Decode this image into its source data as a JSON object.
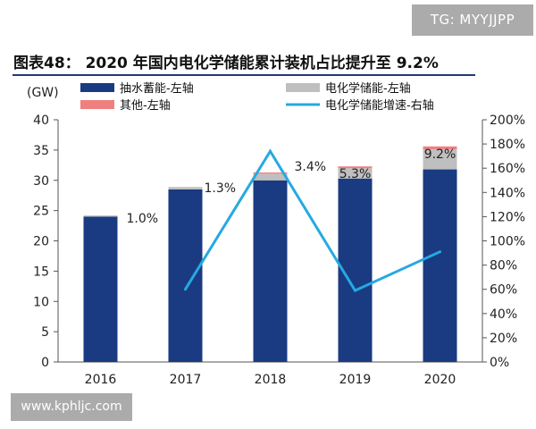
{
  "watermarks": {
    "top": "TG: MYYJJPP",
    "bottom": "www.kphljc.com"
  },
  "chart_data": {
    "type": "bar",
    "title": "图表48：  2020 年国内电化学储能累计装机占比提升至 9.2%",
    "ylabel_left": "(GW)",
    "ylim_left": [
      0,
      40
    ],
    "yticks_left": [
      "0",
      "5",
      "10",
      "15",
      "20",
      "25",
      "30",
      "35",
      "40"
    ],
    "ylim_right": [
      0,
      200
    ],
    "yticks_right": [
      "0%",
      "20%",
      "40%",
      "60%",
      "80%",
      "100%",
      "120%",
      "140%",
      "160%",
      "180%",
      "200%"
    ],
    "categories": [
      "2016",
      "2017",
      "2018",
      "2019",
      "2020"
    ],
    "stacked": true,
    "legend_position": "top",
    "colors": {
      "pumped": "#1a3b82",
      "electrochem": "#bfbfbf",
      "other": "#f07f7f",
      "growth": "#26a9e1"
    },
    "series": [
      {
        "name": "抽水蓄能-左轴",
        "type": "bar",
        "axis": "left",
        "values": [
          24.0,
          28.5,
          30.0,
          30.3,
          31.8
        ]
      },
      {
        "name": "电化学储能-左轴",
        "type": "bar",
        "axis": "left",
        "values": [
          0.2,
          0.4,
          1.1,
          1.7,
          3.3
        ]
      },
      {
        "name": "其他-左轴",
        "type": "bar",
        "axis": "left",
        "values": [
          0.0,
          0.0,
          0.2,
          0.3,
          0.5
        ]
      },
      {
        "name": "电化学储能增速-右轴",
        "type": "line",
        "axis": "right",
        "x": [
          "2017",
          "2018",
          "2019",
          "2020"
        ],
        "values": [
          60,
          174,
          59,
          91
        ]
      }
    ],
    "data_labels": [
      "1.0%",
      "1.3%",
      "3.4%",
      "5.3%",
      "9.2%"
    ],
    "grid": false
  }
}
